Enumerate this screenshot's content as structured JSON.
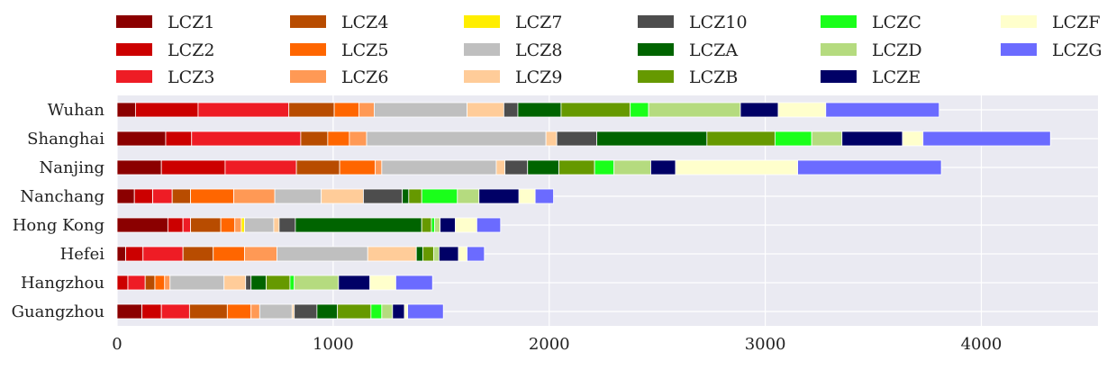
{
  "chart_data": {
    "type": "bar",
    "orientation": "horizontal",
    "stacked": true,
    "categories": [
      "Wuhan",
      "Shanghai",
      "Nanjing",
      "Nanchang",
      "Hong Kong",
      "Hefei",
      "Hangzhou",
      "Guangzhou"
    ],
    "series": [
      {
        "name": "LCZ1",
        "color": "#8B0000",
        "values": [
          85,
          225,
          205,
          80,
          235,
          40,
          0,
          115
        ]
      },
      {
        "name": "LCZ2",
        "color": "#CC0000",
        "values": [
          290,
          120,
          295,
          85,
          70,
          80,
          50,
          90
        ]
      },
      {
        "name": "LCZ3",
        "color": "#EE1C25",
        "values": [
          420,
          505,
          330,
          90,
          35,
          185,
          80,
          130
        ]
      },
      {
        "name": "LCZ4",
        "color": "#B84C00",
        "values": [
          210,
          125,
          200,
          85,
          140,
          140,
          45,
          175
        ]
      },
      {
        "name": "LCZ5",
        "color": "#FF6600",
        "values": [
          115,
          100,
          165,
          200,
          65,
          145,
          45,
          110
        ]
      },
      {
        "name": "LCZ6",
        "color": "#FF9955",
        "values": [
          70,
          80,
          30,
          190,
          30,
          150,
          25,
          40
        ]
      },
      {
        "name": "LCZ7",
        "color": "#FFEE00",
        "values": [
          0,
          0,
          0,
          0,
          15,
          0,
          0,
          0
        ]
      },
      {
        "name": "LCZ8",
        "color": "#BFBFBF",
        "values": [
          430,
          830,
          530,
          215,
          135,
          420,
          250,
          150
        ]
      },
      {
        "name": "LCZ9",
        "color": "#FFCC99",
        "values": [
          170,
          50,
          40,
          195,
          25,
          225,
          100,
          10
        ]
      },
      {
        "name": "LCZ10",
        "color": "#4D4D4D",
        "values": [
          65,
          185,
          105,
          180,
          75,
          0,
          25,
          105
        ]
      },
      {
        "name": "LCZA",
        "color": "#006400",
        "values": [
          200,
          510,
          145,
          30,
          585,
          30,
          70,
          95
        ]
      },
      {
        "name": "LCZB",
        "color": "#669900",
        "values": [
          320,
          315,
          165,
          60,
          45,
          50,
          110,
          155
        ]
      },
      {
        "name": "LCZC",
        "color": "#1AFF1A",
        "values": [
          85,
          170,
          90,
          165,
          15,
          0,
          20,
          50
        ]
      },
      {
        "name": "LCZD",
        "color": "#B5DB7F",
        "values": [
          425,
          140,
          170,
          100,
          25,
          25,
          205,
          50
        ]
      },
      {
        "name": "LCZE",
        "color": "#000066",
        "values": [
          175,
          280,
          115,
          185,
          70,
          90,
          145,
          55
        ]
      },
      {
        "name": "LCZF",
        "color": "#FFFFCC",
        "values": [
          220,
          95,
          565,
          75,
          100,
          40,
          120,
          15
        ]
      },
      {
        "name": "LCZG",
        "color": "#6B6BFF",
        "values": [
          525,
          590,
          665,
          85,
          110,
          80,
          170,
          165
        ]
      }
    ],
    "x_ticks": [
      0,
      1000,
      2000,
      3000,
      4000
    ],
    "xlim": [
      0,
      4540
    ],
    "xlabel": "",
    "ylabel": "",
    "grid": true,
    "legend_position": "top"
  }
}
